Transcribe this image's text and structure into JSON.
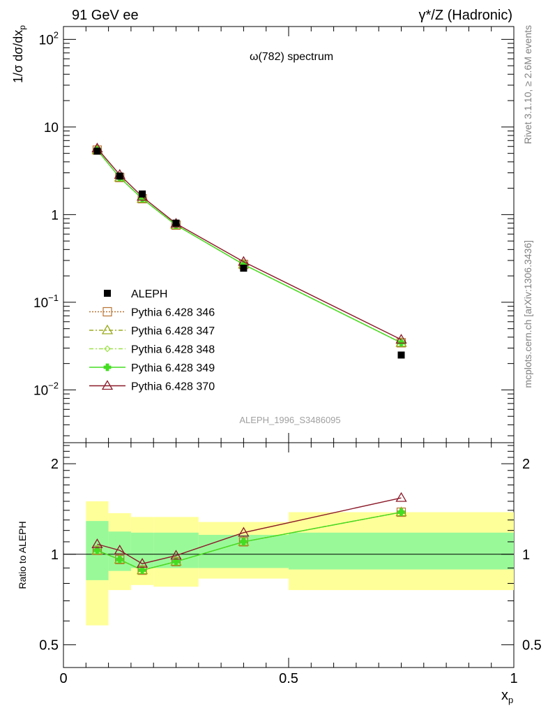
{
  "header": {
    "left": "91 GeV ee",
    "right": "γ*/Z (Hadronic)"
  },
  "side_labels": {
    "rivet": "Rivet 3.1.10, ≥ 2.6M events",
    "mcplots": "mcplots.cern.ch [arXiv:1306.3436]"
  },
  "chart_data": {
    "type": "scatter",
    "title": "ω(782) spectrum",
    "analysis_id": "ALEPH_1996_S3486095",
    "xlabel": "x",
    "xlabel_sub": "p",
    "ylabel": "1/σ dσ/dx",
    "ylabel_sub": "p",
    "xlim": [
      0,
      1
    ],
    "ylim": [
      0.0025,
      140
    ],
    "yscale": "log",
    "x_ticks": [
      "0",
      "0.5",
      "1"
    ],
    "y_ticks": [
      {
        "base": "10",
        "exp": "−2",
        "value": 0.01
      },
      {
        "base": "10",
        "exp": "−1",
        "value": 0.1
      },
      {
        "base": "1",
        "exp": "",
        "value": 1
      },
      {
        "base": "10",
        "exp": "",
        "value": 10
      },
      {
        "base": "10",
        "exp": "2",
        "value": 100
      }
    ],
    "x": [
      0.075,
      0.125,
      0.175,
      0.25,
      0.4,
      0.75
    ],
    "bin_edges": [
      0.05,
      0.1,
      0.15,
      0.2,
      0.3,
      0.5,
      1.0
    ],
    "data": {
      "name": "ALEPH",
      "values": [
        5.3,
        2.75,
        1.72,
        0.8,
        0.245,
        0.025
      ]
    },
    "series": [
      {
        "name": "Pythia 6.428 346",
        "values": [
          5.45,
          2.65,
          1.52,
          0.76,
          0.27,
          0.0345
        ],
        "color": "#b87333",
        "marker": "square",
        "dash": "2,2"
      },
      {
        "name": "Pythia 6.428 347",
        "values": [
          5.45,
          2.65,
          1.52,
          0.76,
          0.27,
          0.0345
        ],
        "color": "#9aaa1e",
        "marker": "triangle",
        "dash": "6,3,2,3"
      },
      {
        "name": "Pythia 6.428 348",
        "values": [
          5.45,
          2.65,
          1.52,
          0.76,
          0.27,
          0.0345
        ],
        "color": "#9ee24a",
        "marker": "diamond",
        "dash": "6,3,2,3"
      },
      {
        "name": "Pythia 6.428 349",
        "values": [
          5.45,
          2.65,
          1.52,
          0.76,
          0.27,
          0.0345
        ],
        "color": "#44dd22",
        "marker": "cross",
        "dash": ""
      },
      {
        "name": "Pythia 6.428 370",
        "values": [
          5.7,
          2.85,
          1.6,
          0.79,
          0.29,
          0.0375
        ],
        "color": "#8b1a2a",
        "marker": "triangle",
        "dash": ""
      }
    ],
    "ratio": {
      "ylabel": "Ratio to ALEPH",
      "ylim": [
        0.42,
        2.35
      ],
      "y_ticks": [
        {
          "label": "0.5",
          "value": 0.5
        },
        {
          "label": "1",
          "value": 1
        },
        {
          "label": "2",
          "value": 2
        }
      ],
      "band_outer": [
        [
          0.58,
          1.5
        ],
        [
          0.76,
          1.37
        ],
        [
          0.79,
          1.33
        ],
        [
          0.78,
          1.33
        ],
        [
          0.83,
          1.28
        ],
        [
          0.76,
          1.38
        ]
      ],
      "band_inner": [
        [
          0.82,
          1.29
        ],
        [
          0.88,
          1.19
        ],
        [
          0.9,
          1.18
        ],
        [
          0.9,
          1.18
        ],
        [
          0.9,
          1.16
        ],
        [
          0.89,
          1.18
        ]
      ],
      "series_values": [
        [
          1.03,
          0.96,
          0.885,
          0.945,
          1.1,
          1.38
        ],
        [
          1.03,
          0.96,
          0.885,
          0.945,
          1.1,
          1.38
        ],
        [
          1.03,
          0.96,
          0.885,
          0.945,
          1.1,
          1.38
        ],
        [
          1.03,
          0.96,
          0.885,
          0.945,
          1.1,
          1.38
        ],
        [
          1.08,
          1.03,
          0.93,
          0.99,
          1.18,
          1.54
        ]
      ]
    }
  }
}
